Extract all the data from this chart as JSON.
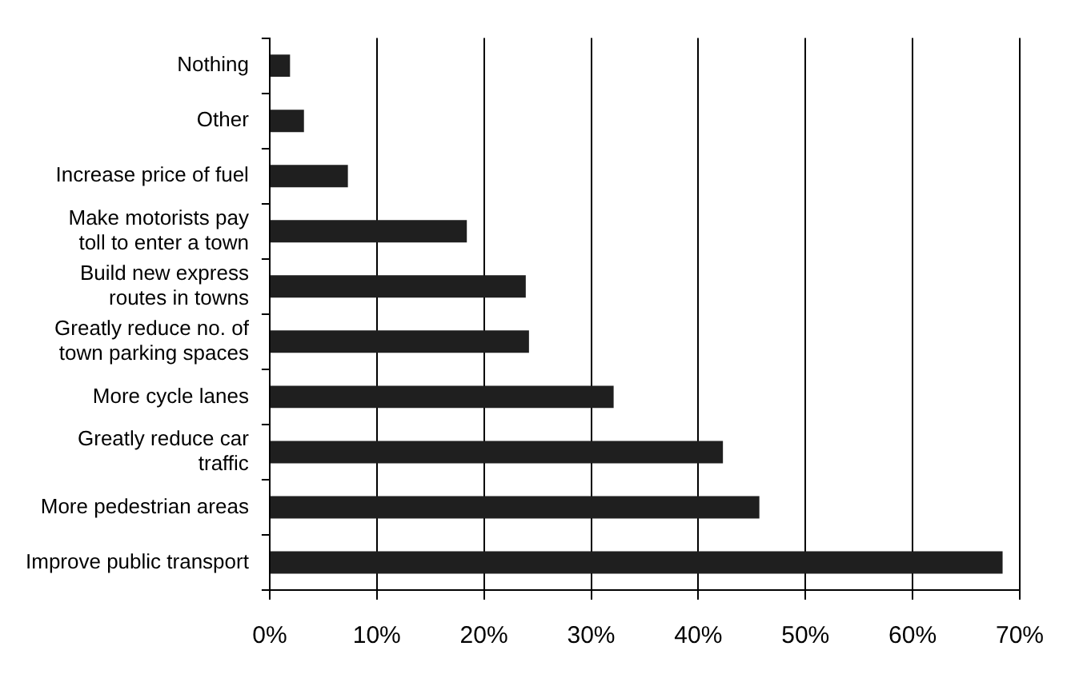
{
  "chart_data": {
    "type": "bar",
    "orientation": "horizontal",
    "categories": [
      "Nothing",
      "Other",
      "Increase price of fuel",
      "Make motorists pay toll to enter a town",
      "Build new express routes in towns",
      "Greatly reduce no. of town parking spaces",
      "More cycle lanes",
      "Greatly reduce car traffic",
      "More pedestrian areas",
      "Improve public transport"
    ],
    "values": [
      1.9,
      3.2,
      7.3,
      18.4,
      23.9,
      24.2,
      32.1,
      42.3,
      45.7,
      68.4
    ],
    "color": "#1f1f1f",
    "xlim": [
      0,
      70
    ],
    "xticks": [
      {
        "value": 0,
        "label": "0%"
      },
      {
        "value": 10,
        "label": "10%"
      },
      {
        "value": 20,
        "label": "20%"
      },
      {
        "value": 30,
        "label": "30%"
      },
      {
        "value": 40,
        "label": "40%"
      },
      {
        "value": 50,
        "label": "50%"
      },
      {
        "value": 60,
        "label": "60%"
      },
      {
        "value": 70,
        "label": "70%"
      }
    ],
    "grid": "x"
  }
}
